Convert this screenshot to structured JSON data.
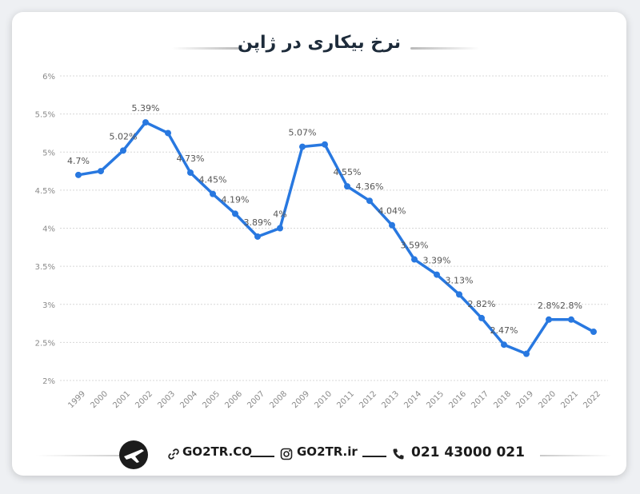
{
  "header": {
    "title": "نرخ بیکاری در ژاپن"
  },
  "footer": {
    "website": "GO2TR.CO",
    "instagram": "GO2TR.ir",
    "phone": "021 43000 021",
    "icons": [
      "airplane-logo-icon",
      "link-icon",
      "instagram-icon",
      "phone-icon"
    ]
  },
  "colors": {
    "line": "#2878e0",
    "grid": "#d7d7d7",
    "tick": "#8a8a8a",
    "label": "#555555"
  },
  "chart_data": {
    "type": "line",
    "title": "نرخ بیکاری در ژاپن",
    "xlabel": "",
    "ylabel": "",
    "categories": [
      "1999",
      "2000",
      "2001",
      "2002",
      "2003",
      "2004",
      "2005",
      "2006",
      "2007",
      "2008",
      "2009",
      "2010",
      "2011",
      "2012",
      "2013",
      "2014",
      "2015",
      "2016",
      "2017",
      "2018",
      "2019",
      "2020",
      "2021",
      "2022"
    ],
    "series": [
      {
        "values": [
          4.7,
          4.75,
          5.02,
          5.39,
          5.25,
          4.73,
          4.45,
          4.19,
          3.89,
          4.0,
          5.07,
          5.1,
          4.55,
          4.36,
          4.04,
          3.59,
          3.39,
          3.13,
          2.82,
          2.47,
          2.35,
          2.8,
          2.8,
          2.64
        ]
      }
    ],
    "data_labels": [
      "4.7%",
      "",
      "5.02%",
      "5.39%",
      "",
      "4.73%",
      "4.45%",
      "4.19%",
      "3.89%",
      "4%",
      "5.07%",
      "",
      "4.55%",
      "4.36%",
      "4.04%",
      "3.59%",
      "3.39%",
      "3.13%",
      "2.82%",
      "2.47%",
      "",
      "2.8%",
      "2.8%",
      ""
    ],
    "yticks": [
      2,
      2.5,
      3,
      3.5,
      4,
      4.5,
      5,
      5.5,
      6
    ],
    "ytick_labels": [
      "2%",
      "2.5%",
      "3%",
      "3.5%",
      "4%",
      "4.5%",
      "5%",
      "5.5%",
      "6%"
    ],
    "ylim": [
      2,
      6
    ],
    "grid": true,
    "legend": "none"
  }
}
